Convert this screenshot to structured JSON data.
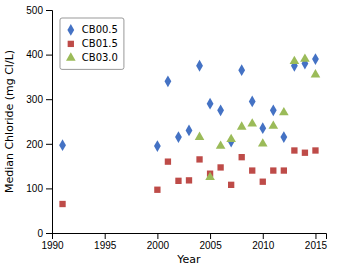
{
  "chart_data": {
    "type": "scatter",
    "xlabel": "Year",
    "ylabel": "Median Chloride (mg Cl/L)",
    "xlim": [
      1990,
      2016
    ],
    "ylim": [
      0,
      500
    ],
    "xticks": [
      1990,
      1995,
      2000,
      2005,
      2010,
      2015
    ],
    "yticks": [
      0,
      100,
      200,
      300,
      400,
      500
    ],
    "grid": false,
    "legend": "upper left",
    "series": [
      {
        "name": "CB00.5",
        "color": "#4472C4",
        "marker": "diamond",
        "x": [
          1991,
          2000,
          2001,
          2002,
          2003,
          2004,
          2005,
          2006,
          2007,
          2008,
          2009,
          2010,
          2011,
          2012,
          2013,
          2014,
          2015
        ],
        "values": [
          197,
          195,
          340,
          215,
          230,
          375,
          290,
          275,
          205,
          365,
          295,
          235,
          275,
          215,
          375,
          380,
          390
        ]
      },
      {
        "name": "CB01.5",
        "color": "#BE4B48",
        "marker": "square",
        "x": [
          1991,
          2000,
          2001,
          2002,
          2003,
          2004,
          2005,
          2006,
          2007,
          2008,
          2009,
          2010,
          2011,
          2012,
          2013,
          2014,
          2015
        ],
        "values": [
          65,
          97,
          160,
          117,
          118,
          165,
          133,
          147,
          108,
          170,
          140,
          115,
          140,
          140,
          185,
          180,
          185
        ]
      },
      {
        "name": "CB03.0",
        "color": "#9BBB59",
        "marker": "triangle",
        "x": [
          2004,
          2005,
          2006,
          2007,
          2008,
          2009,
          2010,
          2011,
          2012,
          2013,
          2014,
          2015
        ],
        "values": [
          215,
          125,
          195,
          210,
          238,
          245,
          200,
          240,
          270,
          385,
          390,
          355
        ]
      }
    ]
  }
}
